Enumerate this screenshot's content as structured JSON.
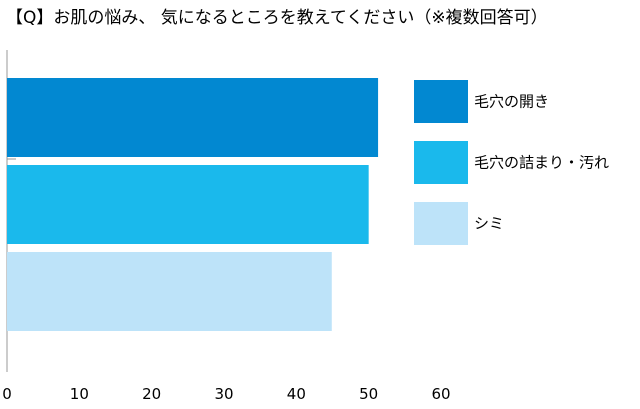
{
  "chart_data": {
    "type": "bar",
    "orientation": "horizontal",
    "title": "【Q】お肌の悩み、 気になるところを教えてください（※複数回答可）",
    "xlabel": "",
    "ylabel": "",
    "xlim": [
      0,
      60
    ],
    "xticks": [
      0,
      10,
      20,
      30,
      40,
      50,
      60
    ],
    "grid": false,
    "legend_position": "right",
    "series": [
      {
        "name": "毛穴の開き",
        "value": 51.3,
        "color": "#0288d1"
      },
      {
        "name": "毛穴の詰まり・汚れ",
        "value": 50.0,
        "color": "#1ab9ec"
      },
      {
        "name": "シミ",
        "value": 44.9,
        "color": "#bde3f9"
      }
    ]
  }
}
